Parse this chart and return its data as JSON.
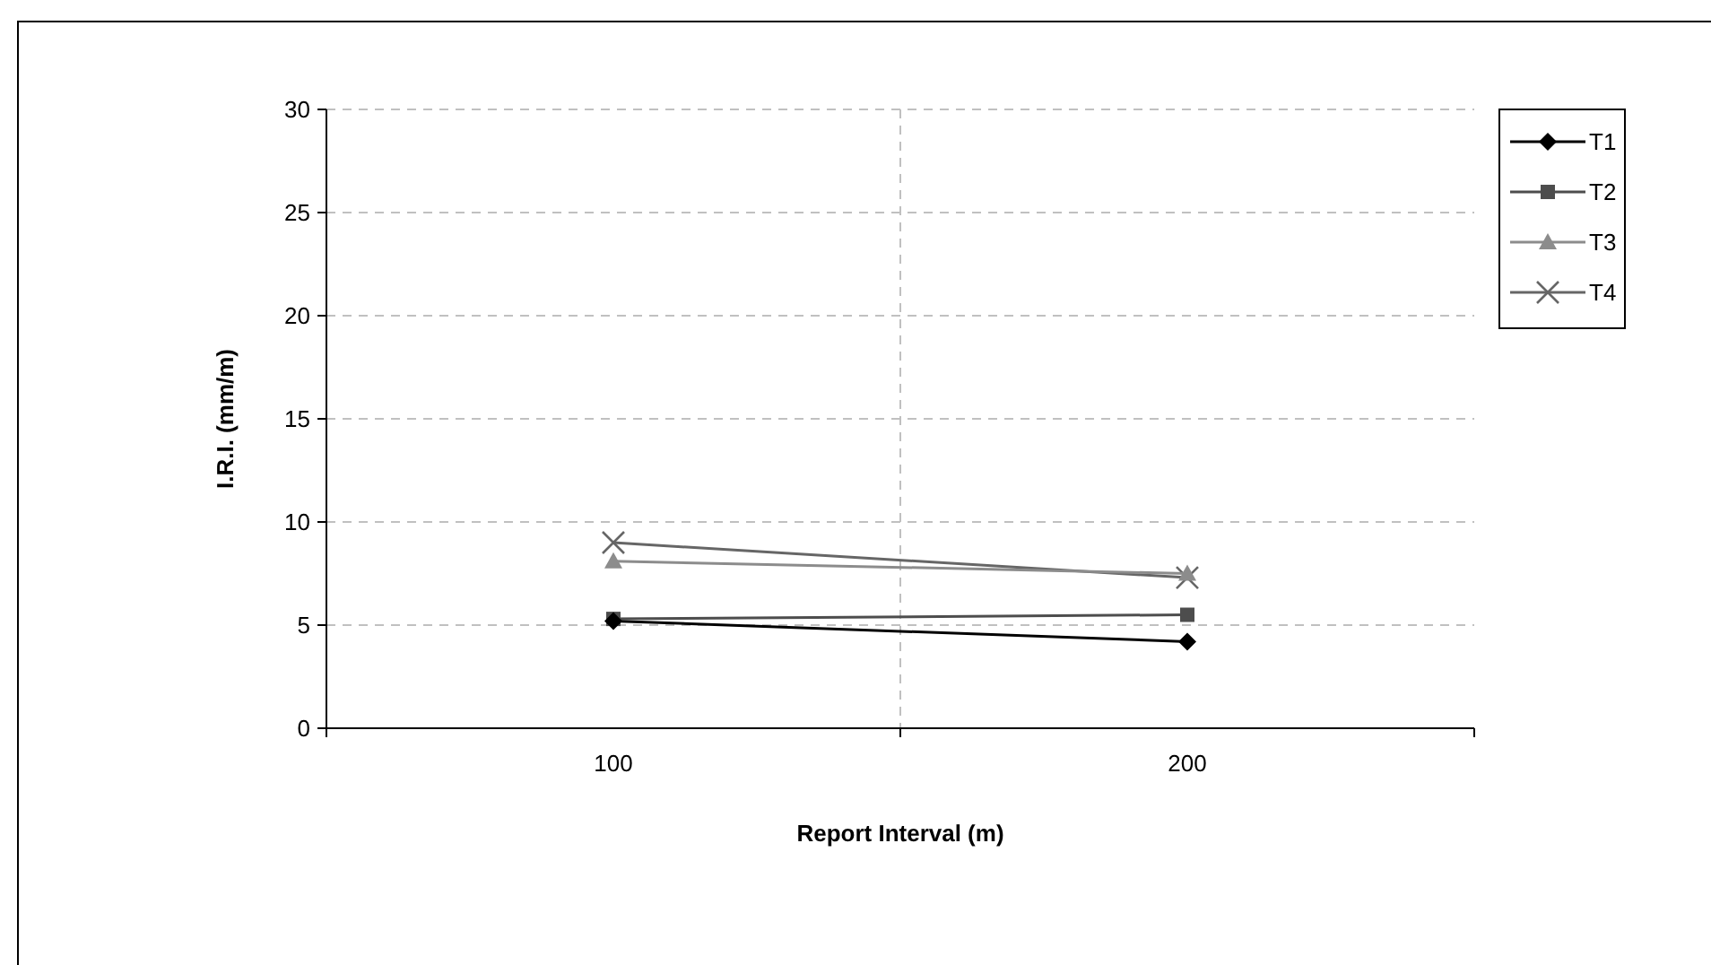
{
  "chart_data": {
    "type": "line",
    "xlabel": "Report Interval (m)",
    "ylabel": "I.R.I. (mm/m)",
    "categories": [
      "100",
      "200"
    ],
    "series": [
      {
        "name": "T1",
        "color": "#000000",
        "marker": "diamond",
        "values": [
          5.2,
          4.2
        ]
      },
      {
        "name": "T2",
        "color": "#4d4d4d",
        "marker": "square",
        "values": [
          5.3,
          5.5
        ]
      },
      {
        "name": "T3",
        "color": "#8c8c8c",
        "marker": "triangle",
        "values": [
          8.1,
          7.5
        ]
      },
      {
        "name": "T4",
        "color": "#666666",
        "marker": "cross",
        "values": [
          9.0,
          7.3
        ]
      }
    ],
    "ylim": [
      0,
      30
    ],
    "yticks": [
      0,
      5,
      10,
      15,
      20,
      25,
      30
    ],
    "grid": true,
    "legend": "right",
    "line_style": "solid"
  }
}
